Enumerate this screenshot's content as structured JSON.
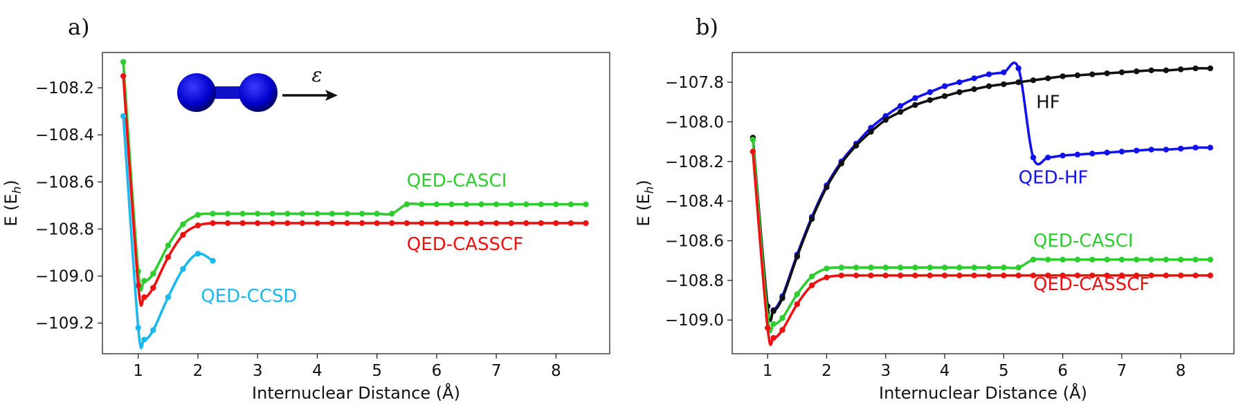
{
  "chart_data": [
    {
      "type": "line",
      "panel_label": "a)",
      "xlabel": "Internuclear Distance (Å)",
      "ylabel": "E (E",
      "ylabel_sub": "h",
      "ylabel_close": ")",
      "xlim": [
        0.4,
        8.9
      ],
      "ylim": [
        -109.33,
        -108.05
      ],
      "xticks": [
        1,
        2,
        3,
        4,
        5,
        6,
        7,
        8
      ],
      "xtick_labels": [
        "1",
        "2",
        "3",
        "4",
        "5",
        "6",
        "7",
        "8"
      ],
      "yticks": [
        -108.2,
        -108.4,
        -108.6,
        -108.8,
        -109.0,
        -109.2
      ],
      "ytick_labels": [
        "−108.2",
        "−108.4",
        "−108.6",
        "−108.8",
        "−109.0",
        "−109.2"
      ],
      "inset": {
        "molecule": "diatomic-molecule",
        "field_symbol": "ε"
      },
      "series": [
        {
          "name": "QED-CASCI",
          "color": "#2ecc2e",
          "label": "QED-CASCI",
          "label_pos": [
            5.5,
            -108.62
          ],
          "x": [
            0.75,
            1.0,
            1.1,
            1.25,
            1.5,
            1.75,
            2.0,
            2.25,
            2.5,
            2.75,
            3.0,
            3.25,
            3.5,
            3.75,
            4.0,
            4.25,
            4.5,
            4.75,
            5.0,
            5.25,
            5.5,
            5.75,
            6.0,
            6.25,
            6.5,
            6.75,
            7.0,
            7.25,
            7.5,
            7.75,
            8.0,
            8.25,
            8.5
          ],
          "y": [
            -108.09,
            -108.98,
            -109.02,
            -108.99,
            -108.87,
            -108.78,
            -108.74,
            -108.735,
            -108.735,
            -108.735,
            -108.735,
            -108.735,
            -108.735,
            -108.735,
            -108.735,
            -108.735,
            -108.735,
            -108.735,
            -108.735,
            -108.735,
            -108.695,
            -108.695,
            -108.695,
            -108.695,
            -108.695,
            -108.695,
            -108.695,
            -108.695,
            -108.695,
            -108.695,
            -108.695,
            -108.695,
            -108.695
          ]
        },
        {
          "name": "QED-CASSCF",
          "color": "#ee1111",
          "label": "QED-CASSCF",
          "label_pos": [
            5.5,
            -108.89
          ],
          "x": [
            0.75,
            1.0,
            1.1,
            1.25,
            1.5,
            1.75,
            2.0,
            2.25,
            2.5,
            2.75,
            3.0,
            3.25,
            3.5,
            3.75,
            4.0,
            4.25,
            4.5,
            4.75,
            5.0,
            5.25,
            5.5,
            5.75,
            6.0,
            6.25,
            6.5,
            6.75,
            7.0,
            7.25,
            7.5,
            7.75,
            8.0,
            8.25,
            8.5
          ],
          "y": [
            -108.15,
            -109.04,
            -109.09,
            -109.05,
            -108.92,
            -108.825,
            -108.785,
            -108.775,
            -108.775,
            -108.775,
            -108.775,
            -108.775,
            -108.775,
            -108.775,
            -108.775,
            -108.775,
            -108.775,
            -108.775,
            -108.775,
            -108.775,
            -108.775,
            -108.775,
            -108.775,
            -108.775,
            -108.775,
            -108.775,
            -108.775,
            -108.775,
            -108.775,
            -108.775,
            -108.775,
            -108.775,
            -108.775
          ]
        },
        {
          "name": "QED-CCSD",
          "color": "#1ab8ee",
          "label": "QED-CCSD",
          "label_pos": [
            2.05,
            -109.11
          ],
          "x": [
            0.75,
            1.0,
            1.1,
            1.25,
            1.5,
            1.75,
            2.0,
            2.25
          ],
          "y": [
            -108.32,
            -109.22,
            -109.27,
            -109.23,
            -109.09,
            -108.97,
            -108.905,
            -108.935
          ]
        }
      ]
    },
    {
      "type": "line",
      "panel_label": "b)",
      "xlabel": "Internuclear Distance (Å)",
      "ylabel": "E (E",
      "ylabel_sub": "h",
      "ylabel_close": ")",
      "xlim": [
        0.4,
        8.9
      ],
      "ylim": [
        -109.17,
        -107.65
      ],
      "xticks": [
        1,
        2,
        3,
        4,
        5,
        6,
        7,
        8
      ],
      "xtick_labels": [
        "1",
        "2",
        "3",
        "4",
        "5",
        "6",
        "7",
        "8"
      ],
      "yticks": [
        -107.8,
        -108.0,
        -108.2,
        -108.4,
        -108.6,
        -108.8,
        -109.0
      ],
      "ytick_labels": [
        "−107.8",
        "−108.0",
        "−108.2",
        "−108.4",
        "−108.6",
        "−108.8",
        "−109.0"
      ],
      "series": [
        {
          "name": "QED-HF",
          "color": "#1111ee",
          "label": "QED-HF",
          "label_pos": [
            5.25,
            -108.31
          ],
          "x": [
            0.75,
            1.0,
            1.1,
            1.25,
            1.5,
            1.75,
            2.0,
            2.25,
            2.5,
            2.75,
            3.0,
            3.25,
            3.5,
            3.75,
            4.0,
            4.25,
            4.5,
            4.75,
            5.0,
            5.25,
            5.5,
            5.75,
            6.0,
            6.25,
            6.5,
            6.75,
            7.0,
            7.25,
            7.5,
            7.75,
            8.0,
            8.25,
            8.5
          ],
          "y": [
            -108.08,
            -108.93,
            -108.95,
            -108.88,
            -108.67,
            -108.48,
            -108.32,
            -108.2,
            -108.11,
            -108.03,
            -107.97,
            -107.92,
            -107.88,
            -107.85,
            -107.82,
            -107.8,
            -107.78,
            -107.76,
            -107.75,
            -107.73,
            -108.18,
            -108.18,
            -108.17,
            -108.165,
            -108.16,
            -108.155,
            -108.15,
            -108.145,
            -108.14,
            -108.14,
            -108.135,
            -108.13,
            -108.13
          ]
        },
        {
          "name": "HF",
          "color": "#111111",
          "label": "HF",
          "label_pos": [
            5.55,
            -107.93
          ],
          "x": [
            0.75,
            1.0,
            1.1,
            1.25,
            1.5,
            1.75,
            2.0,
            2.25,
            2.5,
            2.75,
            3.0,
            3.25,
            3.5,
            3.75,
            4.0,
            4.25,
            4.5,
            4.75,
            5.0,
            5.25,
            5.5,
            5.75,
            6.0,
            6.25,
            6.5,
            6.75,
            7.0,
            7.25,
            7.5,
            7.75,
            8.0,
            8.25,
            8.5
          ],
          "y": [
            -108.08,
            -108.93,
            -108.955,
            -108.89,
            -108.68,
            -108.49,
            -108.33,
            -108.21,
            -108.12,
            -108.05,
            -107.99,
            -107.95,
            -107.915,
            -107.89,
            -107.87,
            -107.85,
            -107.835,
            -107.82,
            -107.81,
            -107.8,
            -107.79,
            -107.78,
            -107.77,
            -107.765,
            -107.76,
            -107.755,
            -107.75,
            -107.745,
            -107.74,
            -107.74,
            -107.735,
            -107.73,
            -107.73
          ]
        },
        {
          "name": "QED-CASCI",
          "color": "#2ecc2e",
          "label": "QED-CASCI",
          "label_pos": [
            5.5,
            -108.63
          ],
          "x": [
            0.75,
            1.0,
            1.1,
            1.25,
            1.5,
            1.75,
            2.0,
            2.25,
            2.5,
            2.75,
            3.0,
            3.25,
            3.5,
            3.75,
            4.0,
            4.25,
            4.5,
            4.75,
            5.0,
            5.25,
            5.5,
            5.75,
            6.0,
            6.25,
            6.5,
            6.75,
            7.0,
            7.25,
            7.5,
            7.75,
            8.0,
            8.25,
            8.5
          ],
          "y": [
            -108.09,
            -108.98,
            -109.02,
            -108.99,
            -108.87,
            -108.78,
            -108.74,
            -108.735,
            -108.735,
            -108.735,
            -108.735,
            -108.735,
            -108.735,
            -108.735,
            -108.735,
            -108.735,
            -108.735,
            -108.735,
            -108.735,
            -108.735,
            -108.695,
            -108.695,
            -108.695,
            -108.695,
            -108.695,
            -108.695,
            -108.695,
            -108.695,
            -108.695,
            -108.695,
            -108.695,
            -108.695,
            -108.695
          ]
        },
        {
          "name": "QED-CASSCF",
          "color": "#ee1111",
          "label": "QED-CASSCF",
          "label_pos": [
            5.5,
            -108.85
          ],
          "x": [
            0.75,
            1.0,
            1.1,
            1.25,
            1.5,
            1.75,
            2.0,
            2.25,
            2.5,
            2.75,
            3.0,
            3.25,
            3.5,
            3.75,
            4.0,
            4.25,
            4.5,
            4.75,
            5.0,
            5.25,
            5.5,
            5.75,
            6.0,
            6.25,
            6.5,
            6.75,
            7.0,
            7.25,
            7.5,
            7.75,
            8.0,
            8.25,
            8.5
          ],
          "y": [
            -108.15,
            -109.04,
            -109.09,
            -109.05,
            -108.92,
            -108.825,
            -108.785,
            -108.775,
            -108.775,
            -108.775,
            -108.775,
            -108.775,
            -108.775,
            -108.775,
            -108.775,
            -108.775,
            -108.775,
            -108.775,
            -108.775,
            -108.775,
            -108.775,
            -108.775,
            -108.775,
            -108.775,
            -108.775,
            -108.775,
            -108.775,
            -108.775,
            -108.775,
            -108.775,
            -108.775,
            -108.775,
            -108.775
          ]
        }
      ]
    }
  ]
}
